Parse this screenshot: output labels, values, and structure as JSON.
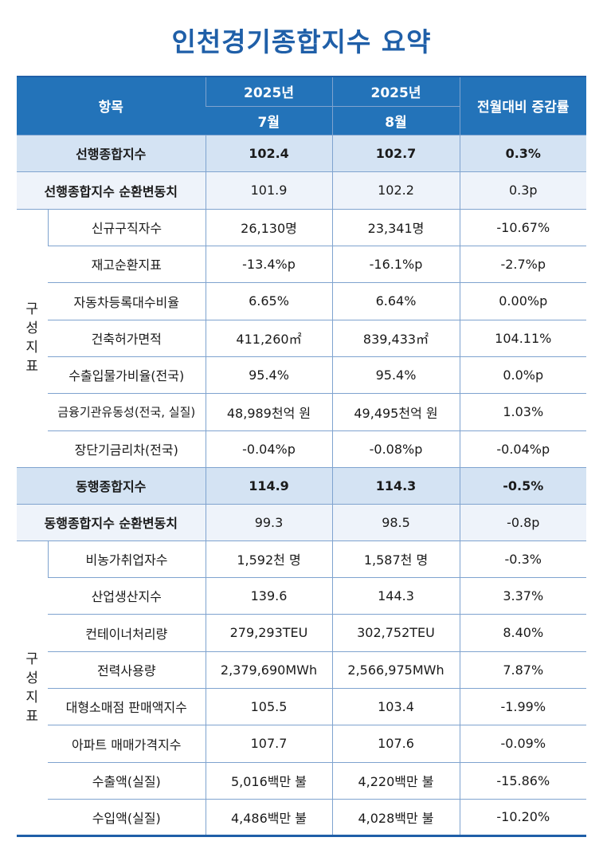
{
  "title": "인천경기종합지수 요약",
  "header": {
    "item": "항목",
    "col1_year": "2025년",
    "col1_month": "7월",
    "col2_year": "2025년",
    "col2_month": "8월",
    "change": "전월대비 증감률"
  },
  "group_label_chars": [
    "구",
    "성",
    "지",
    "표"
  ],
  "leading": {
    "composite": {
      "name": "선행종합지수",
      "jul": "102.4",
      "aug": "102.7",
      "change": "0.3%"
    },
    "cycle": {
      "name": "선행종합지수 순환변동치",
      "jul": "101.9",
      "aug": "102.2",
      "change": "0.3p"
    },
    "components": [
      {
        "name": "신규구직자수",
        "jul": "26,130명",
        "aug": "23,341명",
        "change": "-10.67%"
      },
      {
        "name": "재고순환지표",
        "jul": "-13.4%p",
        "aug": "-16.1%p",
        "change": "-2.7%p"
      },
      {
        "name": "자동차등록대수비율",
        "jul": "6.65%",
        "aug": "6.64%",
        "change": "0.00%p"
      },
      {
        "name": "건축허가면적",
        "jul": "411,260㎡",
        "aug": "839,433㎡",
        "change": "104.11%"
      },
      {
        "name": "수출입물가비율(전국)",
        "jul": "95.4%",
        "aug": "95.4%",
        "change": "0.0%p"
      },
      {
        "name": "금융기관유동성(전국, 실질)",
        "jul": "48,989천억 원",
        "aug": "49,495천억 원",
        "change": "1.03%"
      },
      {
        "name": "장단기금리차(전국)",
        "jul": "-0.04%p",
        "aug": "-0.08%p",
        "change": "-0.04%p"
      }
    ]
  },
  "coincident": {
    "composite": {
      "name": "동행종합지수",
      "jul": "114.9",
      "aug": "114.3",
      "change": "-0.5%"
    },
    "cycle": {
      "name": "동행종합지수 순환변동치",
      "jul": "99.3",
      "aug": "98.5",
      "change": "-0.8p"
    },
    "components": [
      {
        "name": "비농가취업자수",
        "jul": "1,592천 명",
        "aug": "1,587천 명",
        "change": "-0.3%"
      },
      {
        "name": "산업생산지수",
        "jul": "139.6",
        "aug": "144.3",
        "change": "3.37%"
      },
      {
        "name": "컨테이너처리량",
        "jul": "279,293TEU",
        "aug": "302,752TEU",
        "change": "8.40%"
      },
      {
        "name": "전력사용량",
        "jul": "2,379,690MWh",
        "aug": "2,566,975MWh",
        "change": "7.87%"
      },
      {
        "name": "대형소매점 판매액지수",
        "jul": "105.5",
        "aug": "103.4",
        "change": "-1.99%"
      },
      {
        "name": "아파트 매매가격지수",
        "jul": "107.7",
        "aug": "107.6",
        "change": "-0.09%"
      },
      {
        "name": "수출액(실질)",
        "jul": "5,016백만 불",
        "aug": "4,220백만 불",
        "change": "-15.86%"
      },
      {
        "name": "수입액(실질)",
        "jul": "4,486백만 불",
        "aug": "4,028백만 불",
        "change": "-10.20%"
      }
    ]
  }
}
